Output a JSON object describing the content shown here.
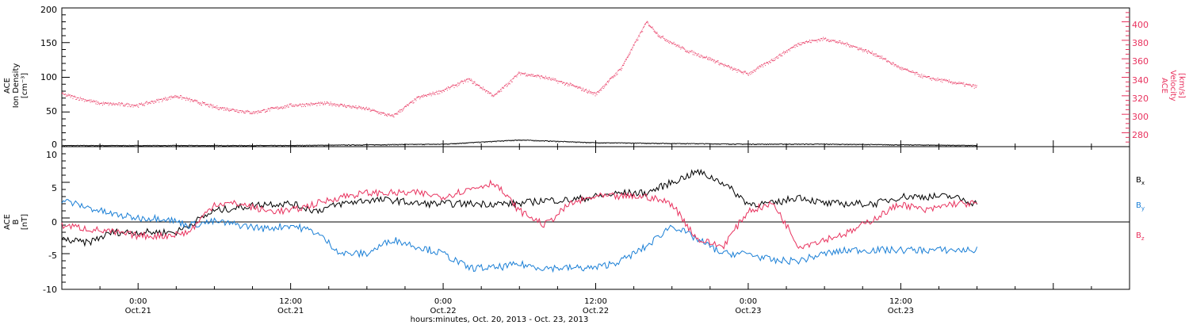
{
  "colors": {
    "black": "#000000",
    "pink": "#e8325e",
    "blue": "#1a7fd6"
  },
  "x_axis": {
    "title": "hours:minutes, Oct. 20, 2013 - Oct. 23, 2013",
    "range_hours": [
      -6,
      78
    ],
    "ticks": [
      {
        "hour": 0,
        "time": "0:00",
        "date": "Oct.21"
      },
      {
        "hour": 12,
        "time": "12:00",
        "date": "Oct.21"
      },
      {
        "hour": 24,
        "time": "0:00",
        "date": "Oct.22"
      },
      {
        "hour": 36,
        "time": "12:00",
        "date": "Oct.22"
      },
      {
        "hour": 48,
        "time": "0:00",
        "date": "Oct.23"
      },
      {
        "hour": 60,
        "time": "12:00",
        "date": "Oct.23"
      }
    ]
  },
  "panel_top": {
    "left_label": [
      "ACE",
      "Ion Density",
      "[cm⁻³]"
    ],
    "right_label": [
      "ACE",
      "Velocity",
      "[km/s]"
    ],
    "left_ticks": [
      "0",
      "50",
      "100",
      "150",
      "200"
    ],
    "right_ticks": [
      "280",
      "300",
      "320",
      "340",
      "360",
      "380",
      "400"
    ]
  },
  "panel_bottom": {
    "left_label": [
      "ACE",
      "B",
      "[nT]"
    ],
    "left_ticks": [
      "-10",
      "-5",
      "0",
      "5",
      "10"
    ],
    "legend": [
      {
        "label": "B",
        "sub": "x",
        "color": "#000000"
      },
      {
        "label": "B",
        "sub": "y",
        "color": "#1a7fd6"
      },
      {
        "label": "B",
        "sub": "z",
        "color": "#e8325e"
      }
    ]
  },
  "chart_data": [
    {
      "type": "scatter",
      "x_unit": "hours since 2013-10-21 00:00",
      "xlim": [
        -6,
        78
      ],
      "series": [
        {
          "axis": "left",
          "ylim": [
            0,
            200
          ],
          "color": "#000000",
          "x": [
            -6,
            0,
            6,
            12,
            18,
            24,
            30,
            36,
            42,
            48,
            54,
            60,
            66
          ],
          "y": [
            2,
            2,
            2,
            2,
            3,
            4,
            10,
            6,
            5,
            4,
            4,
            3,
            2
          ]
        },
        {
          "axis": "right",
          "ylim": [
            265,
            415
          ],
          "color": "#e8325e",
          "x": [
            -6,
            -3,
            0,
            3,
            6,
            9,
            12,
            15,
            18,
            20,
            22,
            24,
            26,
            28,
            30,
            32,
            34,
            36,
            38,
            40,
            41,
            43,
            45,
            47,
            48,
            50,
            52,
            54,
            56,
            58,
            60,
            62,
            64,
            66
          ],
          "y": [
            322,
            312,
            310,
            320,
            308,
            302,
            310,
            312,
            306,
            298,
            318,
            326,
            338,
            320,
            345,
            340,
            332,
            322,
            350,
            400,
            385,
            370,
            360,
            348,
            344,
            360,
            377,
            382,
            375,
            365,
            350,
            340,
            335,
            330
          ]
        }
      ]
    },
    {
      "type": "line",
      "x_unit": "hours since 2013-10-21 00:00",
      "xlim": [
        -6,
        78
      ],
      "ylim": [
        -10,
        10
      ],
      "series": [
        {
          "color": "#000000",
          "x": [
            -6,
            -4,
            -2,
            0,
            3,
            6,
            8,
            10,
            12,
            14,
            16,
            18,
            20,
            22,
            24,
            26,
            28,
            30,
            32,
            34,
            36,
            38,
            40,
            42,
            44,
            46,
            48,
            50,
            52,
            54,
            56,
            58,
            60,
            62,
            64,
            66
          ],
          "y": [
            -3,
            -3.5,
            -2,
            -2,
            -2,
            1,
            1.5,
            2,
            2,
            1,
            2,
            2.5,
            2.5,
            2,
            2,
            2,
            2,
            2,
            2.5,
            2.5,
            3,
            3.5,
            3.5,
            5,
            6.5,
            5,
            2,
            2,
            3,
            2,
            2,
            2,
            3,
            3,
            3,
            2
          ]
        },
        {
          "color": "#1a7fd6",
          "x": [
            -6,
            -4,
            -2,
            0,
            2,
            4,
            6,
            8,
            10,
            12,
            14,
            16,
            18,
            20,
            22,
            24,
            26,
            28,
            30,
            32,
            34,
            36,
            38,
            40,
            42,
            44,
            46,
            48,
            50,
            52,
            54,
            56,
            58,
            60,
            62,
            64,
            66
          ],
          "y": [
            2.5,
            1.5,
            0.5,
            0,
            0,
            -1,
            -0.5,
            -1,
            -1.5,
            -1,
            -2,
            -5,
            -5,
            -3,
            -4,
            -5,
            -7,
            -7,
            -6.5,
            -7,
            -7,
            -7,
            -6,
            -4,
            -1,
            -3,
            -5,
            -5,
            -6,
            -6,
            -5,
            -4.5,
            -4.5,
            -4.5,
            -4.5,
            -4.5,
            -4.5
          ]
        },
        {
          "color": "#e8325e",
          "x": [
            -6,
            -4,
            -2,
            0,
            2,
            4,
            6,
            8,
            10,
            12,
            14,
            16,
            18,
            20,
            22,
            24,
            26,
            28,
            30,
            32,
            34,
            36,
            38,
            40,
            42,
            44,
            46,
            48,
            50,
            52,
            54,
            56,
            58,
            60,
            62,
            64,
            66
          ],
          "y": [
            -1,
            -1.5,
            -2,
            -2.5,
            -2.5,
            -2,
            2,
            2,
            1,
            1,
            2,
            3,
            3.5,
            3.5,
            3.5,
            3,
            4,
            5,
            1,
            -1,
            2,
            3,
            3,
            3,
            2,
            -3,
            -4,
            1,
            2,
            -4,
            -3,
            -2,
            0,
            2,
            1,
            2,
            2
          ]
        }
      ]
    }
  ]
}
